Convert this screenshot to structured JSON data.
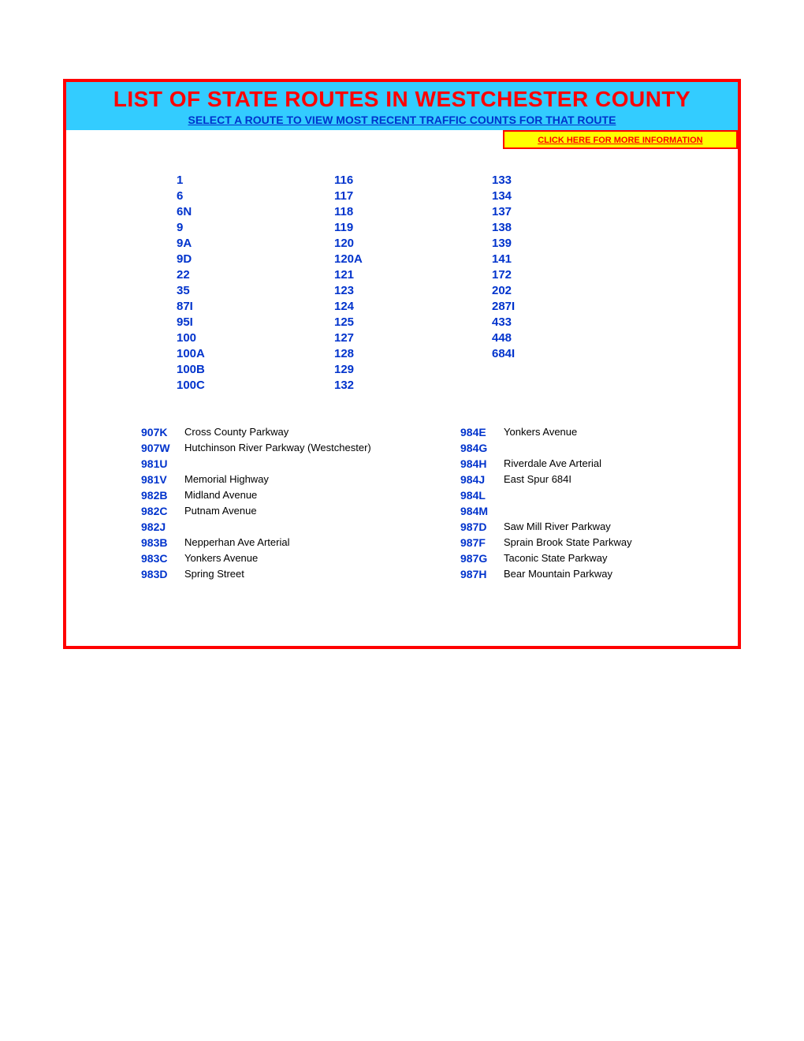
{
  "title": "LIST OF STATE ROUTES IN WESTCHESTER COUNTY",
  "subtitle": "SELECT A ROUTE TO VIEW MOST RECENT TRAFFIC COUNTS FOR THAT ROUTE",
  "info_link": "CLICK HERE FOR MORE INFORMATION",
  "colors": {
    "header_bg": "#33ccff",
    "title_color": "#ff0000",
    "subtitle_color": "#0033cc",
    "border_color": "#ff0000",
    "info_bg": "#ffff00",
    "link_color": "#0033cc",
    "text_color": "#000000",
    "page_bg": "#ffffff"
  },
  "routes_col1": [
    "1",
    "6",
    "6N",
    "9",
    "9A",
    "9D",
    "22",
    "35",
    "87I",
    "95I",
    "100",
    "100A",
    "100B",
    "100C"
  ],
  "routes_col2": [
    "116",
    "117",
    "118",
    "119",
    "120",
    "120A",
    "121",
    "123",
    "124",
    "125",
    "127",
    "128",
    "129",
    "132"
  ],
  "routes_col3": [
    "133",
    "134",
    "137",
    "138",
    "139",
    "141",
    "172",
    "202",
    "287I",
    "433",
    "448",
    "684I"
  ],
  "named_routes_left": [
    {
      "code": "907K",
      "name": "Cross County Parkway"
    },
    {
      "code": "907W",
      "name": "Hutchinson River Parkway (Westchester)"
    },
    {
      "code": "981U",
      "name": ""
    },
    {
      "code": "981V",
      "name": "Memorial Highway"
    },
    {
      "code": "982B",
      "name": "Midland Avenue"
    },
    {
      "code": "982C",
      "name": "Putnam Avenue"
    },
    {
      "code": "982J",
      "name": ""
    },
    {
      "code": "983B",
      "name": "Nepperhan Ave Arterial"
    },
    {
      "code": "983C",
      "name": "Yonkers Avenue"
    },
    {
      "code": "983D",
      "name": "Spring Street"
    }
  ],
  "named_routes_right": [
    {
      "code": "984E",
      "name": "Yonkers Avenue"
    },
    {
      "code": "984G",
      "name": ""
    },
    {
      "code": "984H",
      "name": "Riverdale Ave Arterial"
    },
    {
      "code": "984J",
      "name": "East Spur 684I"
    },
    {
      "code": "984L",
      "name": ""
    },
    {
      "code": "984M",
      "name": ""
    },
    {
      "code": "987D",
      "name": "Saw Mill River Parkway"
    },
    {
      "code": "987F",
      "name": "Sprain Brook State Parkway"
    },
    {
      "code": "987G",
      "name": "Taconic State Parkway"
    },
    {
      "code": "987H",
      "name": " Bear Mountain Parkway"
    }
  ]
}
